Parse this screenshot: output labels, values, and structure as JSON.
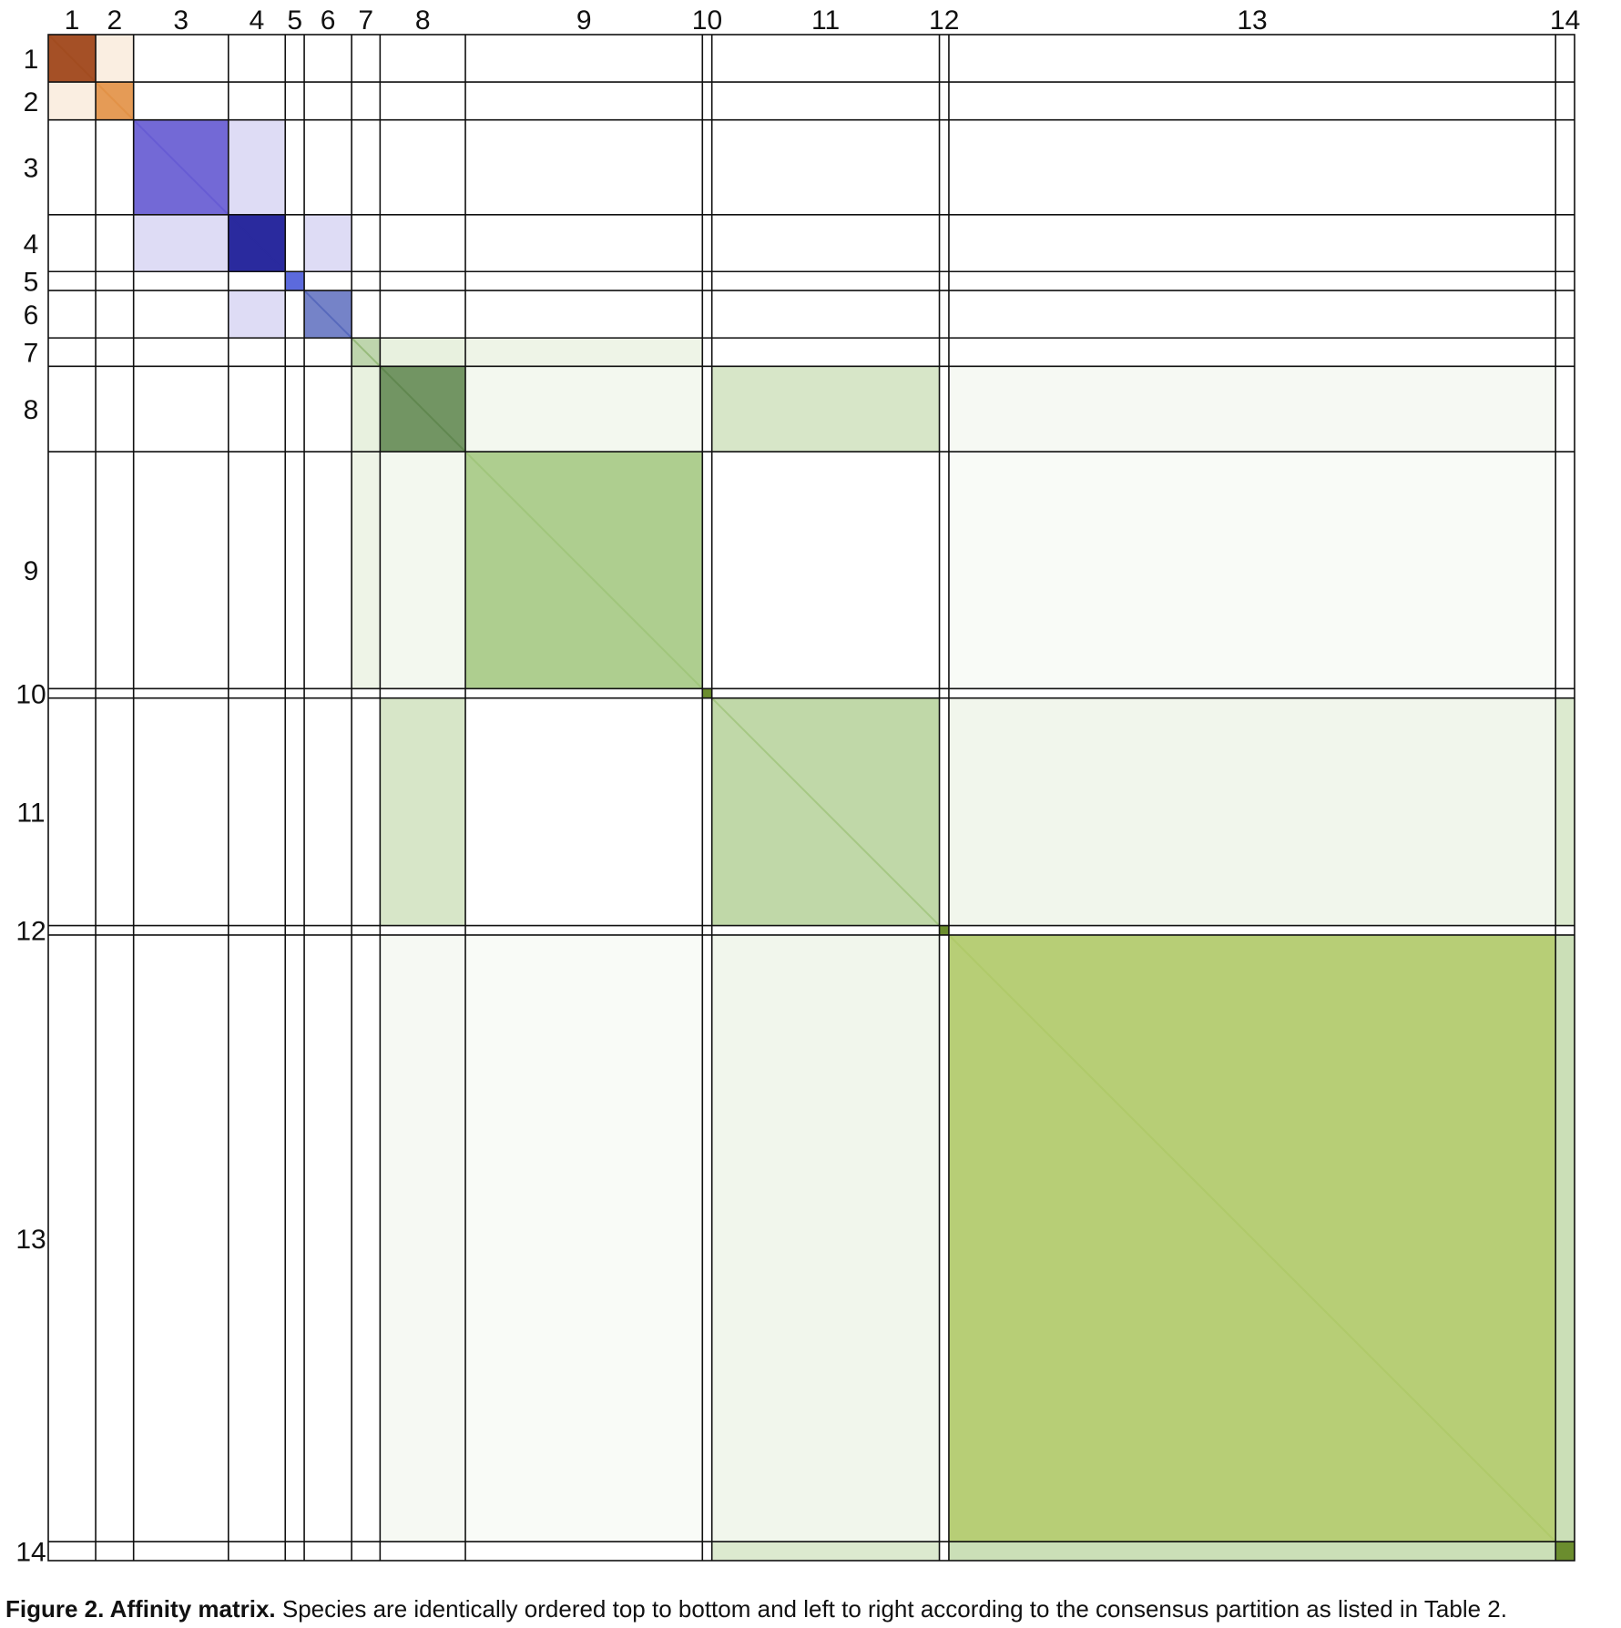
{
  "chart_data": {
    "type": "heatmap",
    "title": "",
    "xlabel": "",
    "ylabel": "",
    "group_labels": [
      "1",
      "2",
      "3",
      "4",
      "5",
      "6",
      "7",
      "8",
      "9",
      "10",
      "11",
      "12",
      "13",
      "14"
    ],
    "group_sizes": [
      5,
      4,
      10,
      6,
      2,
      5,
      3,
      9,
      25,
      1,
      24,
      1,
      64,
      2
    ],
    "group_colors": [
      "#a0471a",
      "#e08a38",
      "#5b4fcf",
      "#2a2a9e",
      "#4a5ad8",
      "#3a4fb0",
      "#6fa14a",
      "#4f7a3c",
      "#93bd6a",
      "#6b8d2e",
      "#8cb860",
      "#6b8d2e",
      "#aac55e",
      "#6b8d2e"
    ],
    "within_affinity": [
      0.95,
      0.85,
      0.85,
      1.0,
      0.9,
      0.7,
      0.45,
      0.8,
      0.75,
      1.0,
      0.55,
      1.0,
      0.85,
      1.0
    ],
    "between_affinity": [
      {
        "a": 1,
        "b": 2,
        "value": 0.15,
        "color": "#e08a38"
      },
      {
        "a": 3,
        "b": 4,
        "value": 0.2,
        "color": "#5b4fcf"
      },
      {
        "a": 4,
        "b": 6,
        "value": 0.2,
        "color": "#5b4fcf"
      },
      {
        "a": 7,
        "b": 8,
        "value": 0.2,
        "color": "#8cb860"
      },
      {
        "a": 7,
        "b": 9,
        "value": 0.15,
        "color": "#8cb860"
      },
      {
        "a": 8,
        "b": 9,
        "value": 0.1,
        "color": "#8cb860"
      },
      {
        "a": 8,
        "b": 11,
        "value": 0.35,
        "color": "#8cb860"
      },
      {
        "a": 8,
        "b": 13,
        "value": 0.08,
        "color": "#8cb860"
      },
      {
        "a": 9,
        "b": 13,
        "value": 0.05,
        "color": "#8cb860"
      },
      {
        "a": 11,
        "b": 13,
        "value": 0.12,
        "color": "#8cb860"
      },
      {
        "a": 11,
        "b": 14,
        "value": 0.3,
        "color": "#8cb860"
      },
      {
        "a": 13,
        "b": 14,
        "value": 0.45,
        "color": "#8cb860"
      }
    ],
    "grid": true,
    "legend": false
  },
  "caption": {
    "label": "Figure 2. Affinity matrix.",
    "text": " Species are identically ordered top to bottom and left to right according to the consensus partition as listed in Table 2."
  }
}
